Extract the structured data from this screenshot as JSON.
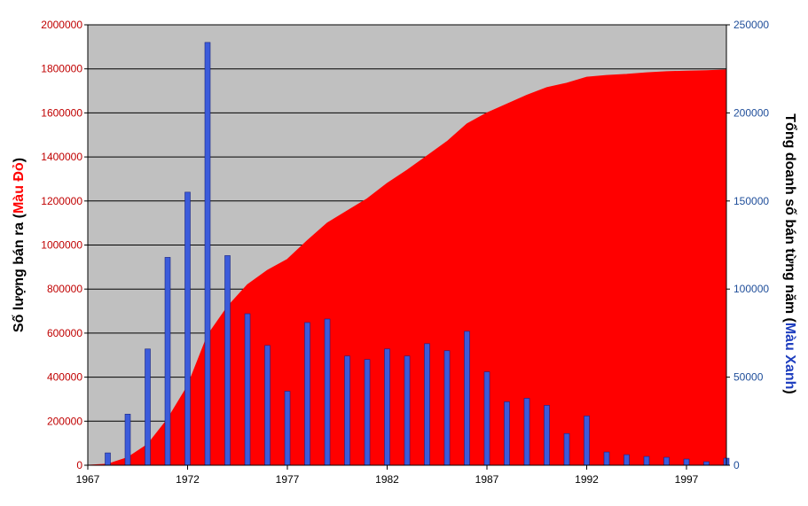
{
  "chart_data": {
    "type": "area+bar",
    "x_ticks": [
      "1967",
      "1972",
      "1977",
      "1982",
      "1987",
      "1992",
      "1997"
    ],
    "xlim": [
      1967,
      1999
    ],
    "y_left": {
      "label_prefix": "Số lượng bán ra (",
      "label_highlight": "Màu Đỏ",
      "label_suffix": ")",
      "range": [
        0,
        2000000
      ],
      "ticks": [
        "0",
        "200000",
        "400000",
        "600000",
        "800000",
        "1000000",
        "1200000",
        "1400000",
        "1600000",
        "1800000",
        "2000000"
      ]
    },
    "y_right": {
      "label_prefix": "Tổng doanh số bán từng năm (",
      "label_highlight": "Màu Xanh",
      "label_suffix": ")",
      "range": [
        0,
        250000
      ],
      "ticks": [
        "0",
        "50000",
        "100000",
        "150000",
        "200000",
        "250000"
      ]
    },
    "area_series": {
      "axis": "left",
      "color": "#ff0000",
      "x": [
        1967.0,
        1968.0,
        1969.0,
        1970.0,
        1971.0,
        1972.0,
        1973.0,
        1974.0,
        1975.0,
        1976.0,
        1977.0,
        1978.0,
        1979.0,
        1980.0,
        1981.0,
        1982.0,
        1983.0,
        1984.0,
        1985.0,
        1986.0,
        1987.0,
        1988.0,
        1989.0,
        1990.0,
        1991.0,
        1992.0,
        1993.0,
        1994.0,
        1995.0,
        1996.0,
        1997.0,
        1998.0,
        1999.0
      ],
      "values": [
        0,
        5000,
        35000,
        95000,
        210000,
        360000,
        590000,
        720000,
        820000,
        885000,
        935000,
        1020000,
        1100000,
        1155000,
        1210000,
        1280000,
        1340000,
        1405000,
        1470000,
        1550000,
        1600000,
        1640000,
        1680000,
        1715000,
        1735000,
        1762000,
        1770000,
        1775000,
        1782000,
        1787000,
        1790000,
        1792000,
        1795000
      ]
    },
    "bar_series": {
      "axis": "right",
      "color": "#3b5bdb",
      "x": [
        1968,
        1969,
        1970,
        1971,
        1972,
        1973,
        1974,
        1975,
        1976,
        1977,
        1978,
        1979,
        1980,
        1981,
        1982,
        1983,
        1984,
        1985,
        1986,
        1987,
        1988,
        1989,
        1990,
        1991,
        1992,
        1993,
        1994,
        1995,
        1996,
        1997,
        1998,
        1999
      ],
      "values": [
        7000,
        29000,
        66000,
        118000,
        155000,
        240000,
        119000,
        86000,
        68000,
        42000,
        81000,
        83000,
        62000,
        60000,
        66000,
        62000,
        69000,
        65000,
        76000,
        53000,
        36000,
        38000,
        34000,
        18000,
        28000,
        7500,
        6000,
        5000,
        4500,
        3500,
        2000,
        4000
      ]
    },
    "plot_background": "#c0c0c0",
    "left_axis_color": "#c00000",
    "right_axis_color": "#1f4e9a",
    "highlight_left_color": "#ff0000",
    "highlight_right_color": "#1f3fbf",
    "grid": true
  }
}
